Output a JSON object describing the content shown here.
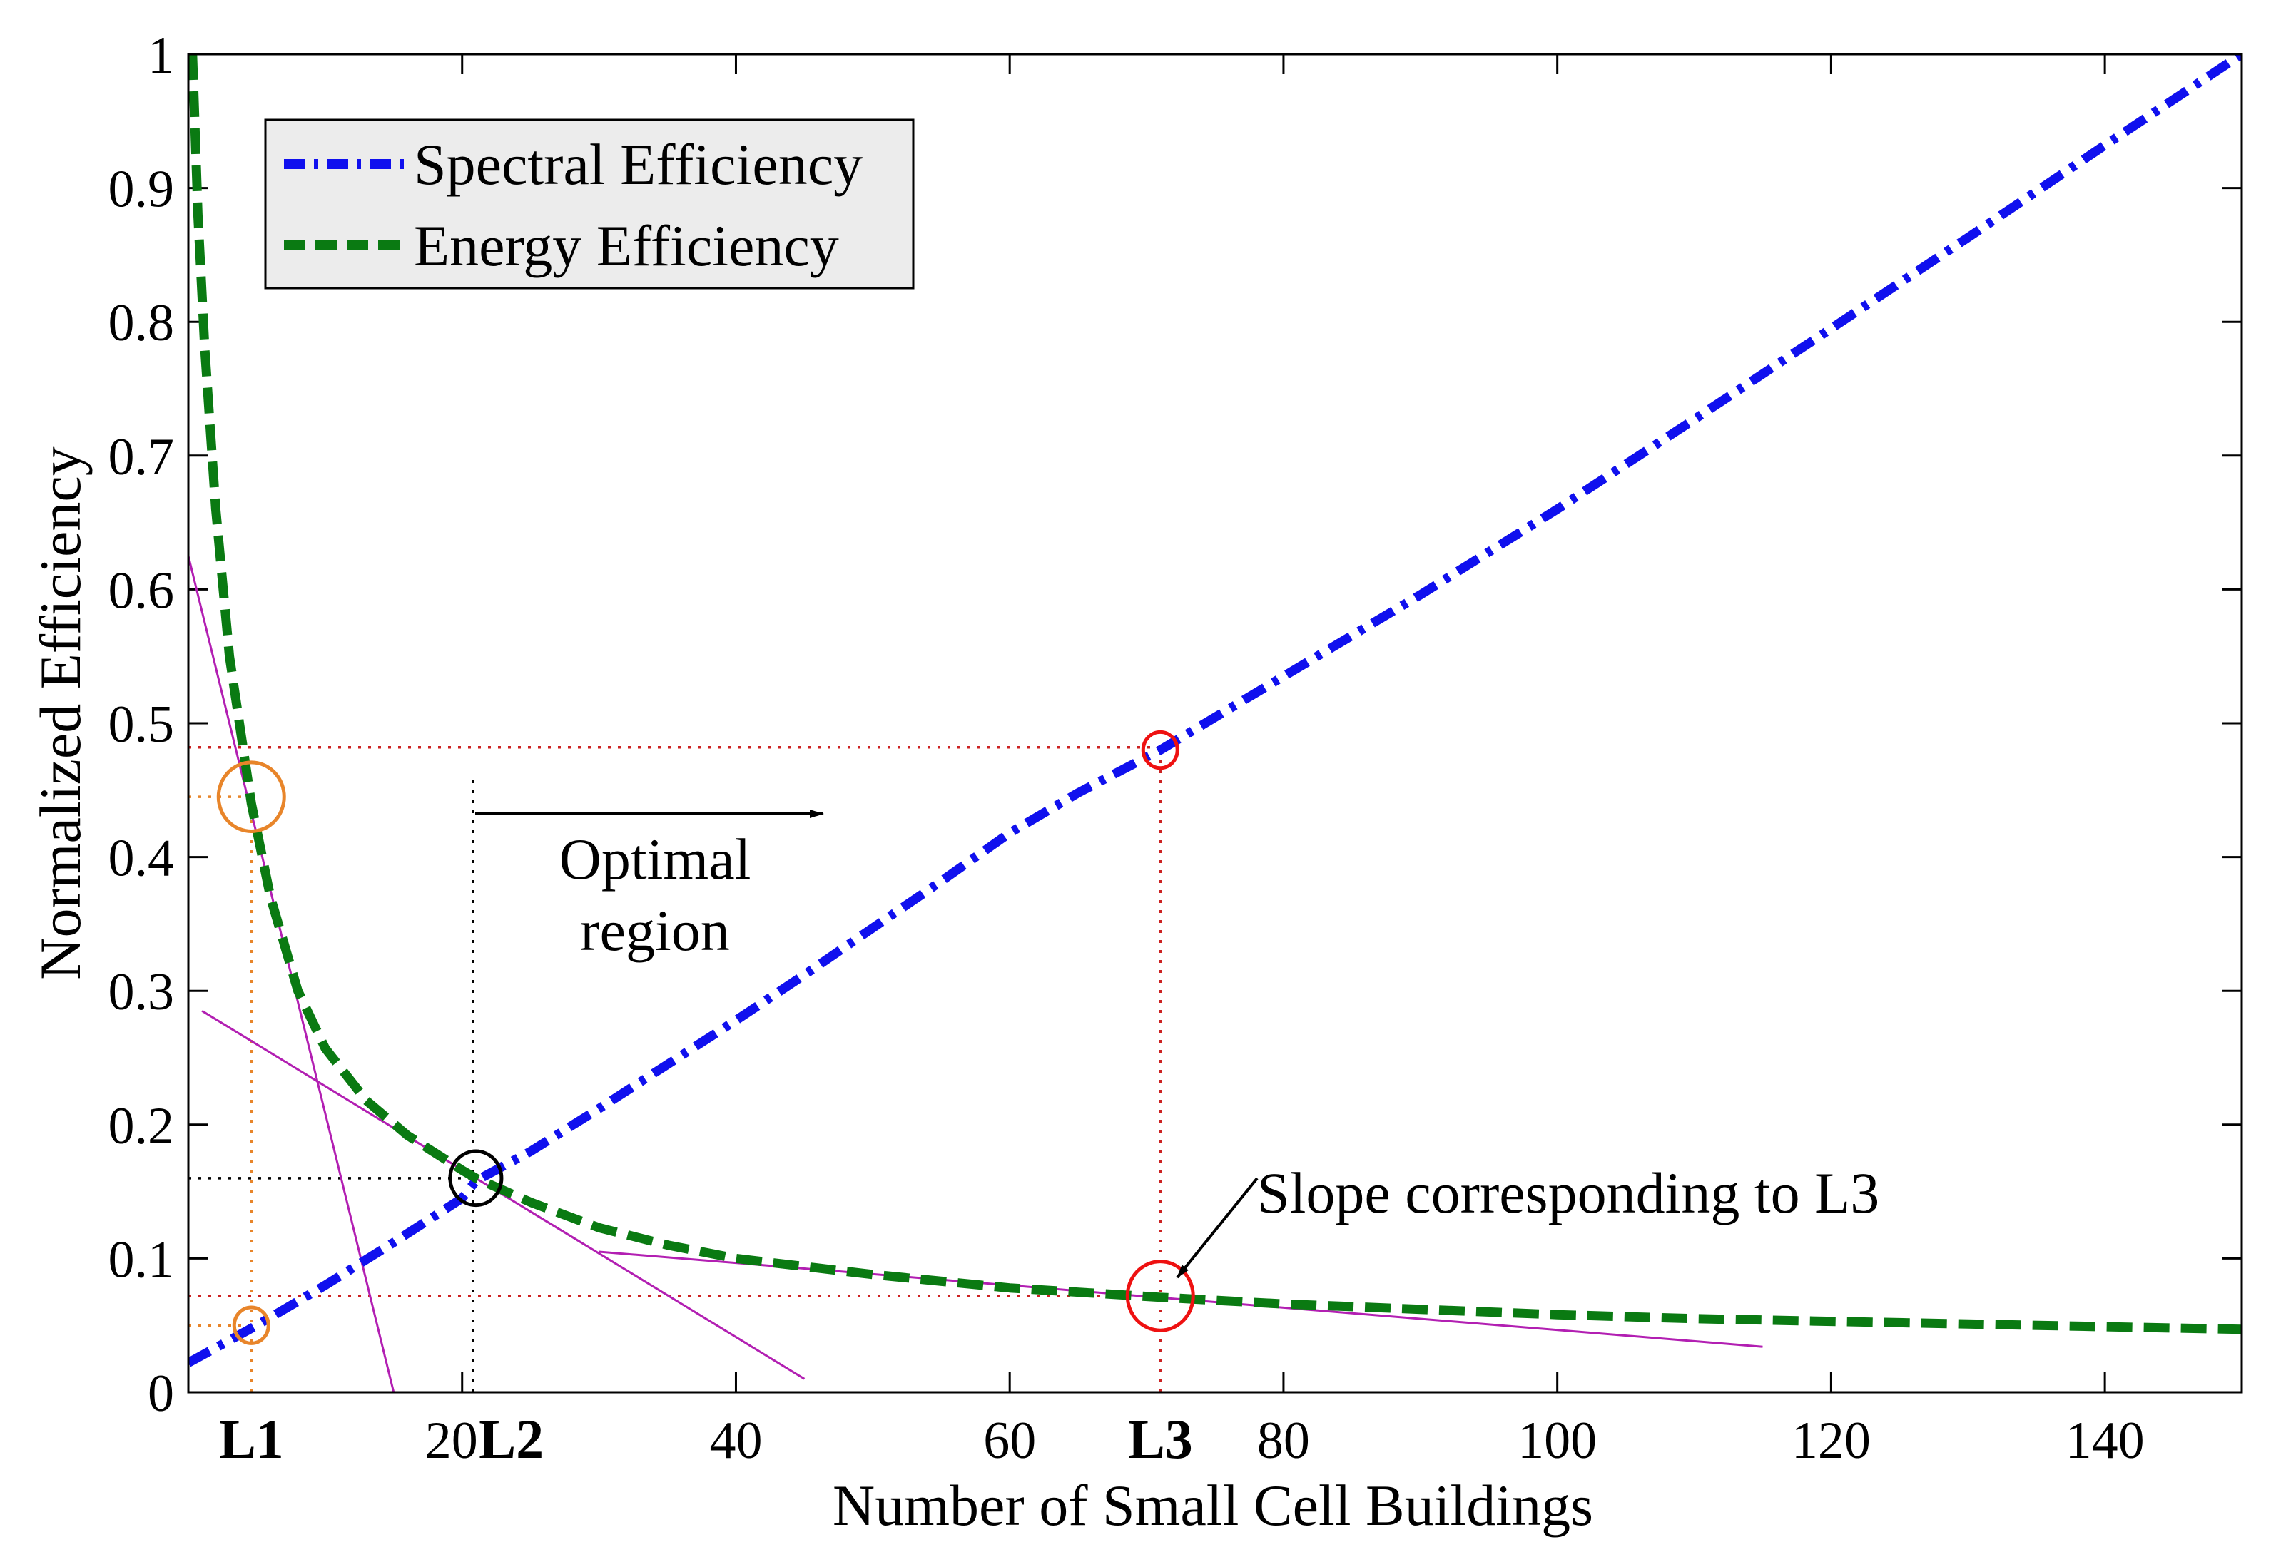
{
  "chart_data": {
    "type": "line",
    "xlabel": "Number of Small Cell Buildings",
    "ylabel": "Normalized Efficiency",
    "xlim": [
      0,
      150
    ],
    "ylim": [
      0,
      1
    ],
    "xticks": [
      {
        "value": 20,
        "label": "20"
      },
      {
        "value": 40,
        "label": "40"
      },
      {
        "value": 60,
        "label": "60"
      },
      {
        "value": 80,
        "label": "80"
      },
      {
        "value": 100,
        "label": "100"
      },
      {
        "value": 120,
        "label": "120"
      },
      {
        "value": 140,
        "label": "140"
      }
    ],
    "yticks": [
      {
        "value": 0,
        "label": "0"
      },
      {
        "value": 0.1,
        "label": "0.1"
      },
      {
        "value": 0.2,
        "label": "0.2"
      },
      {
        "value": 0.3,
        "label": "0.3"
      },
      {
        "value": 0.4,
        "label": "0.4"
      },
      {
        "value": 0.5,
        "label": "0.5"
      },
      {
        "value": 0.6,
        "label": "0.6"
      },
      {
        "value": 0.7,
        "label": "0.7"
      },
      {
        "value": 0.8,
        "label": "0.8"
      },
      {
        "value": 0.9,
        "label": "0.9"
      },
      {
        "value": 1,
        "label": "1"
      }
    ],
    "markers": [
      {
        "label": "L1",
        "x": 4.6
      },
      {
        "label": "L2",
        "x": 20.8
      },
      {
        "label": "L3",
        "x": 71
      }
    ],
    "series": [
      {
        "name": "Spectral Efficiency",
        "color": "#1010ee",
        "style": "dash-dot",
        "points": [
          [
            0,
            0.022
          ],
          [
            5,
            0.05
          ],
          [
            10,
            0.08
          ],
          [
            15,
            0.112
          ],
          [
            20,
            0.145
          ],
          [
            21,
            0.158
          ],
          [
            25,
            0.18
          ],
          [
            30,
            0.212
          ],
          [
            35,
            0.245
          ],
          [
            40,
            0.278
          ],
          [
            45,
            0.312
          ],
          [
            50,
            0.347
          ],
          [
            55,
            0.382
          ],
          [
            60,
            0.418
          ],
          [
            65,
            0.448
          ],
          [
            71,
            0.48
          ],
          [
            80,
            0.535
          ],
          [
            90,
            0.596
          ],
          [
            100,
            0.66
          ],
          [
            110,
            0.727
          ],
          [
            120,
            0.795
          ],
          [
            130,
            0.863
          ],
          [
            140,
            0.932
          ],
          [
            150,
            1.0
          ]
        ]
      },
      {
        "name": "Energy Efficiency",
        "color": "#0a7a12",
        "style": "dashed",
        "points": [
          [
            0.3,
            1.0
          ],
          [
            0.7,
            0.88
          ],
          [
            1.2,
            0.78
          ],
          [
            2,
            0.66
          ],
          [
            3,
            0.55
          ],
          [
            4.6,
            0.44
          ],
          [
            6,
            0.37
          ],
          [
            8,
            0.3
          ],
          [
            10,
            0.257
          ],
          [
            13,
            0.218
          ],
          [
            16,
            0.192
          ],
          [
            20,
            0.166
          ],
          [
            21,
            0.16
          ],
          [
            25,
            0.142
          ],
          [
            30,
            0.123
          ],
          [
            35,
            0.11
          ],
          [
            40,
            0.1
          ],
          [
            50,
            0.088
          ],
          [
            60,
            0.078
          ],
          [
            71,
            0.071
          ],
          [
            80,
            0.066
          ],
          [
            90,
            0.062
          ],
          [
            100,
            0.058
          ],
          [
            110,
            0.055
          ],
          [
            120,
            0.053
          ],
          [
            130,
            0.051
          ],
          [
            140,
            0.049
          ],
          [
            150,
            0.047
          ]
        ]
      }
    ],
    "tangent_lines": [
      {
        "name": "slope-at-L1",
        "points": [
          [
            0,
            0.625
          ],
          [
            15,
            0
          ]
        ]
      },
      {
        "name": "slope-at-L2",
        "points": [
          [
            1,
            0.285
          ],
          [
            45,
            0.01
          ]
        ]
      },
      {
        "name": "slope-at-L3",
        "points": [
          [
            30,
            0.105
          ],
          [
            115,
            0.034
          ]
        ]
      }
    ],
    "guides": [
      {
        "name": "L1-vertical",
        "color": "#e8852a",
        "points": [
          [
            4.6,
            0
          ],
          [
            4.6,
            0.445
          ]
        ]
      },
      {
        "name": "L1-ee-horizontal",
        "color": "#e8852a",
        "points": [
          [
            0,
            0.445
          ],
          [
            4.6,
            0.445
          ]
        ]
      },
      {
        "name": "L1-se-horizontal",
        "color": "#e8852a",
        "points": [
          [
            0,
            0.05
          ],
          [
            4.6,
            0.05
          ]
        ]
      },
      {
        "name": "L2-vertical",
        "color": "#000000",
        "points": [
          [
            20.8,
            0
          ],
          [
            20.8,
            0.46
          ]
        ]
      },
      {
        "name": "L2-horizontal",
        "color": "#000000",
        "points": [
          [
            0,
            0.16
          ],
          [
            20.8,
            0.16
          ]
        ]
      },
      {
        "name": "L3-vertical",
        "color": "#cc2222",
        "points": [
          [
            71,
            0
          ],
          [
            71,
            0.48
          ]
        ]
      },
      {
        "name": "L3-se-horizontal",
        "color": "#cc2222",
        "points": [
          [
            0,
            0.482
          ],
          [
            71,
            0.482
          ]
        ]
      },
      {
        "name": "L3-ee-horizontal",
        "color": "#cc2222",
        "points": [
          [
            0,
            0.072
          ],
          [
            71,
            0.072
          ]
        ]
      }
    ],
    "circles": [
      {
        "name": "L1-ee-circle",
        "color": "#e8852a",
        "x": 4.6,
        "y": 0.445,
        "size": "large"
      },
      {
        "name": "L1-se-circle",
        "color": "#e8852a",
        "x": 4.6,
        "y": 0.05,
        "size": "small"
      },
      {
        "name": "L2-intersection-circle",
        "color": "#000000",
        "x": 21,
        "y": 0.16,
        "size": "medium"
      },
      {
        "name": "L3-se-circle",
        "color": "#ee1111",
        "x": 71,
        "y": 0.48,
        "size": "small"
      },
      {
        "name": "L3-ee-circle",
        "color": "#ee1111",
        "x": 71,
        "y": 0.072,
        "size": "large"
      }
    ],
    "annotations": {
      "optimal_region_line1": "Optimal",
      "optimal_region_line2": "region",
      "slope_note": "Slope corresponding to L3"
    },
    "legend": {
      "position": "top-left",
      "entries": [
        "Spectral Efficiency",
        "Energy Efficiency"
      ]
    }
  }
}
